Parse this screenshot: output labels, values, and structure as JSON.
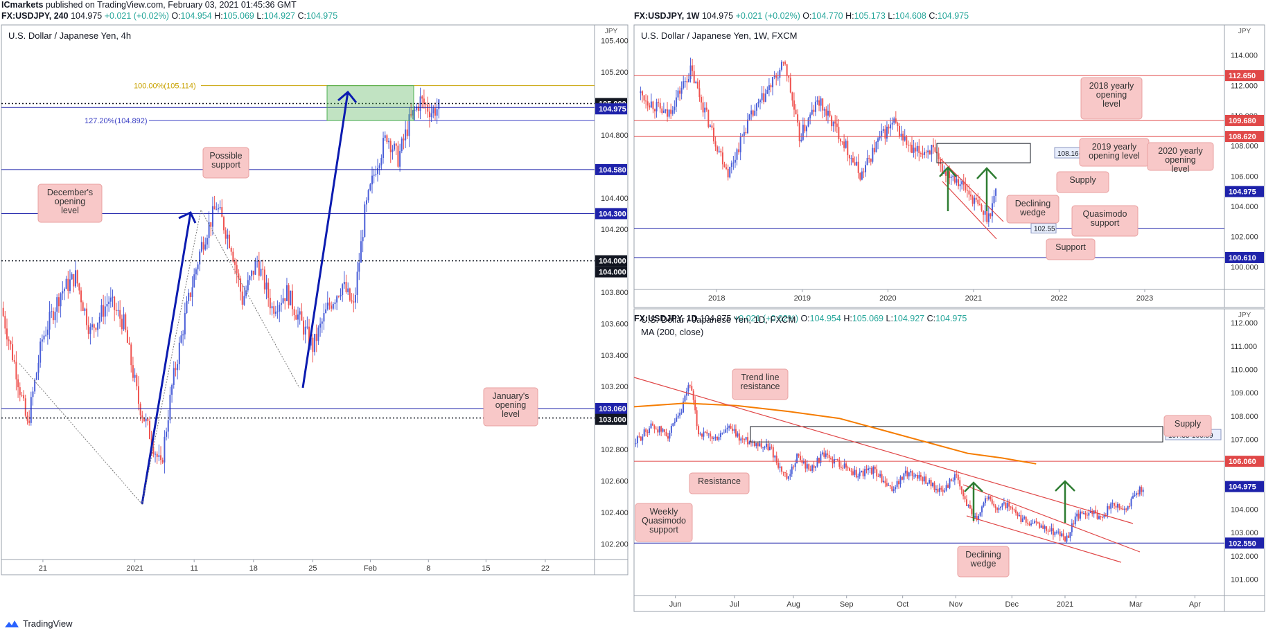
{
  "header": {
    "publisher": "ICmarkets",
    "published_text": "published on TradingView.com, February 03, 2021 01:45:36 GMT"
  },
  "brand": {
    "label": "TradingView"
  },
  "colors": {
    "up": "#26a69a",
    "down": "#ef5350",
    "blue_line": "#1e22aa",
    "red_line": "#e04848",
    "ma": "#f57c00",
    "label_bg": "#f8c8c8",
    "fib": "#c8a200"
  },
  "panels": [
    {
      "id": "left",
      "ticker_line": {
        "symbol": "FX:USDJPY, 240",
        "last": "104.975",
        "change": "+0.021 (+0.02%)",
        "o": "104.954",
        "h": "105.069",
        "l": "104.927",
        "c": "104.975"
      },
      "title": "U.S. Dollar / Japanese Yen, 4h",
      "currency": "JPY",
      "y_ticks": [
        "105.400",
        "105.200",
        "104.800",
        "104.400",
        "104.200",
        "103.800",
        "103.600",
        "103.400",
        "103.200",
        "102.800",
        "102.600",
        "102.400",
        "102.200"
      ],
      "x_ticks": [
        "21",
        "2021",
        "11",
        "18",
        "25",
        "Feb",
        "8",
        "15",
        "22"
      ],
      "price_tags": [
        {
          "text": "105.000",
          "style": "black"
        },
        {
          "text": "104.975",
          "style": "blue"
        },
        {
          "text": "104.580",
          "style": "blue"
        },
        {
          "text": "104.300",
          "style": "blue"
        },
        {
          "text": "104.000",
          "style": "black"
        },
        {
          "text": "104.000",
          "style": "black"
        },
        {
          "text": "103.060",
          "style": "blue"
        },
        {
          "text": "103.000",
          "style": "black"
        }
      ],
      "fib_labels": [
        "100.00%(105.114)",
        "127.20%(104.892)"
      ],
      "annotations": [
        "Possible support",
        "December's opening level",
        "January's opening level"
      ]
    },
    {
      "id": "top-right",
      "ticker_line": {
        "symbol": "FX:USDJPY, 1W",
        "last": "104.975",
        "change": "+0.021 (+0.02%)",
        "o": "104.770",
        "h": "105.173",
        "l": "104.608",
        "c": "104.975"
      },
      "title": "U.S. Dollar / Japanese Yen, 1W, FXCM",
      "currency": "JPY",
      "y_ticks": [
        "114.000",
        "112.000",
        "110.000",
        "108.000",
        "106.000",
        "104.000",
        "102.000",
        "100.000"
      ],
      "x_ticks": [
        "2018",
        "2019",
        "2020",
        "2021",
        "2022",
        "2023"
      ],
      "price_tags": [
        {
          "text": "112.650",
          "style": "red"
        },
        {
          "text": "109.680",
          "style": "red"
        },
        {
          "text": "108.620",
          "style": "red"
        },
        {
          "text": "104.975",
          "style": "blue"
        },
        {
          "text": "100.610",
          "style": "blue"
        }
      ],
      "zone_labels": [
        "108.16-106.88",
        "102.55"
      ],
      "annotations": [
        "2018 yearly opening level",
        "2019 yearly opening level",
        "2020 yearly opening level",
        "Supply",
        "Declining wedge",
        "Quasimodo support",
        "Support"
      ]
    },
    {
      "id": "bottom-right",
      "ticker_line": {
        "symbol": "FX:USDJPY, 1D",
        "last": "104.975",
        "change": "+0.021 (+0.02%)",
        "o": "104.954",
        "h": "105.069",
        "l": "104.927",
        "c": "104.975"
      },
      "title": "U.S. Dollar / Japanese Yen, 1D, FXCM",
      "indicator": "MA (200, close)",
      "currency": "JPY",
      "y_ticks": [
        "112.000",
        "111.000",
        "110.000",
        "109.000",
        "108.000",
        "107.000",
        "104.000",
        "103.000",
        "102.000",
        "101.000"
      ],
      "x_ticks": [
        "Jun",
        "Jul",
        "Aug",
        "Sep",
        "Oct",
        "Nov",
        "Dec",
        "2021",
        "Mar",
        "Apr"
      ],
      "price_tags": [
        {
          "text": "106.060",
          "style": "red"
        },
        {
          "text": "104.975",
          "style": "blue"
        },
        {
          "text": "102.550",
          "style": "blue"
        }
      ],
      "zone_labels": [
        "107.55-106.89"
      ],
      "annotations": [
        "Trend line resistance",
        "Supply",
        "Resistance",
        "Weekly Quasimodo support",
        "Declining wedge"
      ]
    }
  ],
  "chart_data": [
    {
      "type": "candlestick",
      "title": "U.S. Dollar / Japanese Yen, 4h",
      "ylim": [
        102.1,
        105.5
      ],
      "x_range": [
        "Dec 17, 2020",
        "Feb 24, 2021"
      ],
      "levels": {
        "round_105": 105.0,
        "last": 104.975,
        "possible_support": 104.58,
        "december_open": 104.3,
        "round_104": 104.0,
        "january_open": 103.06,
        "round_103": 103.0
      },
      "fib": {
        "100.00%": 105.114,
        "127.20%": 104.892
      },
      "path": [
        [
          0,
          103.7
        ],
        [
          8,
          103.3
        ],
        [
          14,
          102.95
        ],
        [
          22,
          103.5
        ],
        [
          32,
          103.8
        ],
        [
          40,
          103.9
        ],
        [
          48,
          103.55
        ],
        [
          58,
          103.75
        ],
        [
          66,
          103.6
        ],
        [
          74,
          103.1
        ],
        [
          80,
          102.9
        ],
        [
          86,
          102.68
        ],
        [
          92,
          103.2
        ],
        [
          100,
          103.7
        ],
        [
          108,
          104.1
        ],
        [
          116,
          104.35
        ],
        [
          124,
          104.1
        ],
        [
          130,
          103.75
        ],
        [
          138,
          104.0
        ],
        [
          146,
          103.7
        ],
        [
          154,
          103.8
        ],
        [
          162,
          103.6
        ],
        [
          168,
          103.45
        ],
        [
          176,
          103.7
        ],
        [
          184,
          103.85
        ],
        [
          190,
          103.7
        ],
        [
          196,
          104.3
        ],
        [
          202,
          104.6
        ],
        [
          208,
          104.8
        ],
        [
          214,
          104.65
        ],
        [
          220,
          104.88
        ],
        [
          226,
          105.02
        ],
        [
          232,
          104.95
        ],
        [
          236,
          104.975
        ]
      ]
    },
    {
      "type": "candlestick",
      "title": "U.S. Dollar / Japanese Yen, 1W, FXCM",
      "ylim": [
        98.5,
        116.0
      ],
      "x_range": [
        "2017",
        "2023"
      ],
      "levels": {
        "yearly_open_2018": 112.65,
        "yearly_open_2019": 109.68,
        "yearly_open_2020": 108.62,
        "last": 104.975,
        "quasimodo_support": 102.55,
        "support": 100.61
      },
      "supply_zone": [
        106.88,
        108.16
      ],
      "path": [
        [
          2017.3,
          111.5
        ],
        [
          2017.6,
          110.0
        ],
        [
          2017.85,
          113.0
        ],
        [
          2018.1,
          108.5
        ],
        [
          2018.25,
          106.2
        ],
        [
          2018.45,
          109.5
        ],
        [
          2018.6,
          111.0
        ],
        [
          2018.85,
          113.5
        ],
        [
          2019.0,
          108.5
        ],
        [
          2019.2,
          111.0
        ],
        [
          2019.45,
          108.5
        ],
        [
          2019.65,
          106.0
        ],
        [
          2019.85,
          108.5
        ],
        [
          2020.0,
          109.5
        ],
        [
          2020.2,
          107.5
        ],
        [
          2020.4,
          107.8
        ],
        [
          2020.5,
          106.5
        ],
        [
          2020.65,
          106.0
        ],
        [
          2020.8,
          104.8
        ],
        [
          2020.95,
          103.5
        ],
        [
          2021.0,
          103.3
        ],
        [
          2021.08,
          104.975
        ]
      ]
    },
    {
      "type": "candlestick",
      "title": "U.S. Dollar / Japanese Yen, 1D, FXCM",
      "ylim": [
        100.3,
        112.6
      ],
      "x_range": [
        "May 2020",
        "Apr 2021"
      ],
      "levels": {
        "resistance": 106.06,
        "last": 104.975,
        "weekly_quasimodo_support": 102.55
      },
      "supply_zone": [
        106.89,
        107.55
      ],
      "series": [
        {
          "name": "MA (200, close)",
          "values": [
            [
              0,
              108.4
            ],
            [
              60,
              108.55
            ],
            [
              120,
              108.45
            ],
            [
              180,
              108.2
            ],
            [
              240,
              107.9
            ],
            [
              290,
              107.4
            ],
            [
              340,
              106.9
            ],
            [
              390,
              106.4
            ],
            [
              430,
              106.2
            ],
            [
              470,
              105.95
            ]
          ]
        }
      ],
      "path": [
        [
          0,
          106.8
        ],
        [
          20,
          107.6
        ],
        [
          40,
          107.2
        ],
        [
          55,
          108.1
        ],
        [
          65,
          109.5
        ],
        [
          75,
          107.3
        ],
        [
          95,
          107.0
        ],
        [
          110,
          107.5
        ],
        [
          125,
          107.0
        ],
        [
          140,
          106.9
        ],
        [
          160,
          106.6
        ],
        [
          170,
          105.8
        ],
        [
          180,
          105.2
        ],
        [
          190,
          106.3
        ],
        [
          205,
          105.7
        ],
        [
          220,
          106.3
        ],
        [
          240,
          106.0
        ],
        [
          260,
          105.5
        ],
        [
          280,
          105.7
        ],
        [
          300,
          104.8
        ],
        [
          320,
          105.6
        ],
        [
          340,
          105.3
        ],
        [
          360,
          104.7
        ],
        [
          375,
          105.5
        ],
        [
          385,
          104.5
        ],
        [
          400,
          103.6
        ],
        [
          412,
          104.6
        ],
        [
          420,
          104.1
        ],
        [
          435,
          104.2
        ],
        [
          450,
          103.6
        ],
        [
          465,
          103.4
        ],
        [
          480,
          103.2
        ],
        [
          495,
          103.0
        ],
        [
          505,
          102.7
        ],
        [
          515,
          103.6
        ],
        [
          530,
          103.9
        ],
        [
          545,
          103.7
        ],
        [
          560,
          104.2
        ],
        [
          575,
          104.0
        ],
        [
          585,
          104.6
        ],
        [
          595,
          104.975
        ]
      ]
    }
  ]
}
